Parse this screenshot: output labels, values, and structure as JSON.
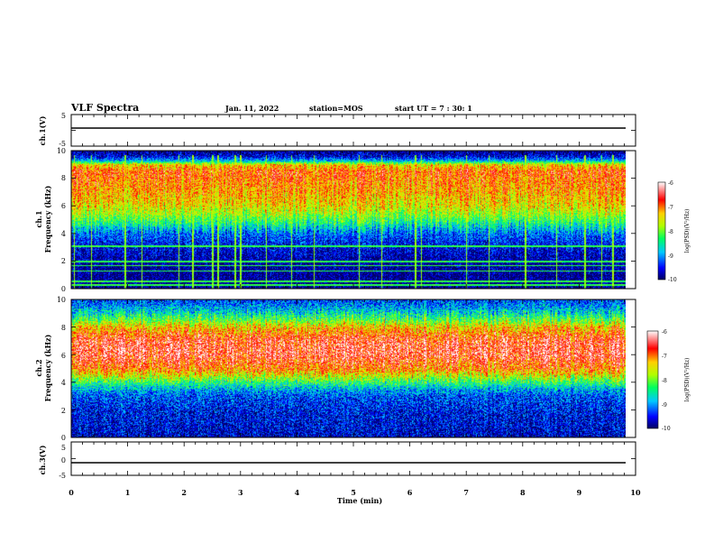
{
  "header": {
    "title": "VLF Spectra",
    "date": "Jan. 11, 2022",
    "station": "station=MOS",
    "start": "start UT =  7 : 30: 1"
  },
  "chart_data": [
    {
      "type": "line",
      "name": "ch1-waveform",
      "ylabel": "ch.1(V)",
      "ylim": [
        -5,
        5
      ],
      "yticks": [
        "5",
        "-5"
      ],
      "x_minutes": [
        0,
        9.83
      ],
      "values": [
        -0.2,
        -0.2
      ],
      "xlim": [
        0,
        10
      ]
    },
    {
      "type": "heatmap",
      "name": "ch1-spectrogram",
      "ylabel": "ch.1\nFrequency (kHz)",
      "ylim": [
        0,
        10
      ],
      "yticks": [
        "0",
        "2",
        "4",
        "6",
        "8",
        "10"
      ],
      "xlim": [
        0,
        10
      ],
      "data_extent_min": 9.83,
      "colorbar": {
        "label": "log(PSD)(V²/Hz)",
        "range": [
          -10,
          -6
        ],
        "ticks": [
          "-6",
          "-7",
          "-8",
          "-9",
          "-10"
        ]
      },
      "profile_khz": [
        0,
        1,
        2,
        3,
        4,
        4.5,
        5,
        5.5,
        6,
        7,
        8,
        8.5,
        9,
        9.3,
        9.6,
        10
      ],
      "profile_logpsd": [
        -9.9,
        -9.9,
        -9.8,
        -9.6,
        -9.2,
        -8.7,
        -8.2,
        -7.8,
        -7.5,
        -7.2,
        -7.0,
        -6.9,
        -7.4,
        -8.9,
        -9.6,
        -9.9
      ],
      "line_khz": [
        0.3,
        0.55,
        1.3,
        1.7,
        2.0,
        3.1
      ],
      "bursts_min": [
        0.05,
        0.35,
        0.95,
        1.25,
        1.9,
        2.15,
        2.5,
        2.6,
        2.9,
        3.0,
        3.45,
        3.9,
        4.3,
        5.1,
        5.5,
        6.1,
        6.2,
        7.0,
        7.4,
        8.05,
        8.6,
        9.1,
        9.4,
        9.6
      ]
    },
    {
      "type": "heatmap",
      "name": "ch2-spectrogram",
      "ylabel": "ch.2\nFrequency (kHz)",
      "ylim": [
        0,
        10
      ],
      "yticks": [
        "0",
        "2",
        "4",
        "6",
        "8",
        "10"
      ],
      "xlim": [
        0,
        10
      ],
      "data_extent_min": 9.83,
      "colorbar": {
        "label": "log(PSD)(V²/Hz)",
        "range": [
          -10,
          -6
        ],
        "ticks": [
          "-6",
          "-7",
          "-8",
          "-9",
          "-10"
        ]
      },
      "profile_khz": [
        0,
        1,
        2,
        3,
        3.5,
        4,
        4.5,
        5,
        6,
        7,
        7.5,
        8,
        8.5,
        9,
        9.5,
        10
      ],
      "profile_logpsd": [
        -9.7,
        -9.6,
        -9.5,
        -9.3,
        -8.9,
        -8.3,
        -7.6,
        -7.0,
        -6.5,
        -6.6,
        -6.9,
        -7.3,
        -8.0,
        -8.6,
        -9.0,
        -9.3
      ]
    },
    {
      "type": "line",
      "name": "ch3-waveform",
      "ylabel": "ch.3(V)",
      "ylim": [
        -5,
        5
      ],
      "yticks": [
        "5",
        "0",
        "-5"
      ],
      "x_minutes": [
        0,
        9.83
      ],
      "values": [
        -0.2,
        -0.2
      ],
      "xlim": [
        0,
        10
      ],
      "xlabel": "Time (min)",
      "xticks": [
        "0",
        "1",
        "2",
        "3",
        "4",
        "5",
        "6",
        "7",
        "8",
        "9",
        "10"
      ]
    }
  ]
}
